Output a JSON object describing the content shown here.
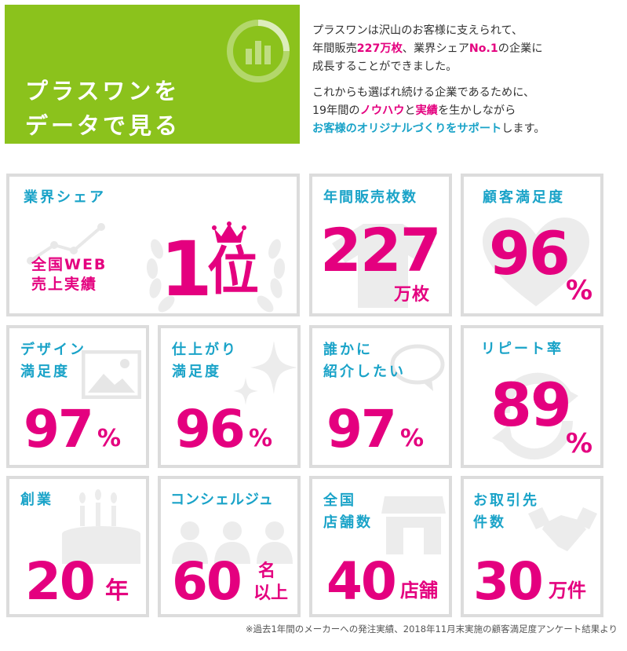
{
  "banner": {
    "title_line1": "プラスワンを",
    "title_line2": "データで見る",
    "bg_color": "#8bc21c",
    "icon": "chart-ring-icon"
  },
  "intro": {
    "p1_a": "プラスワンは沢山のお客様に支えられて、",
    "p1_b": "年間販売",
    "p1_c": "227万枚",
    "p1_d": "、業界シェア",
    "p1_e": "No.1",
    "p1_f": "の企業に",
    "p1_g": "成長することができました。",
    "p2_a": "これからも選ばれ続ける企業であるために、",
    "p2_b": "19年間の",
    "p2_c": "ノウハウ",
    "p2_d": "と",
    "p2_e": "実績",
    "p2_f": "を生かしながら",
    "p2_g": "お客様のオリジナルづくりをサポート",
    "p2_h": "します。"
  },
  "colors": {
    "pink": "#e4007f",
    "blue": "#1aa3c8",
    "green": "#8bc21c",
    "border": "#dcdcdc"
  },
  "stats": {
    "share": {
      "label": "業界シェア",
      "sub1": "全国WEB",
      "sub2": "売上実績",
      "value": "1",
      "unit": "位",
      "icon": "crown-icon"
    },
    "annual": {
      "label": "年間販売枚数",
      "value": "227",
      "unit": "万枚",
      "icon": "tshirt-icon"
    },
    "satisfaction": {
      "label": "顧客満足度",
      "value": "96",
      "unit": "%",
      "icon": "heart-icon"
    },
    "design": {
      "label1": "デザイン",
      "label2": "満足度",
      "value": "97",
      "unit": "%",
      "icon": "picture-icon"
    },
    "finish": {
      "label1": "仕上がり",
      "label2": "満足度",
      "value": "96",
      "unit": "%",
      "icon": "sparkle-icon"
    },
    "recommend": {
      "label1": "誰かに",
      "label2": "紹介したい",
      "value": "97",
      "unit": "%",
      "icon": "speech-bubble-icon"
    },
    "repeat": {
      "label": "リピート率",
      "value": "89",
      "unit": "%",
      "icon": "cycle-arrows-icon"
    },
    "founded": {
      "label": "創業",
      "value": "20",
      "unit": "年",
      "icon": "cake-icon"
    },
    "concierge": {
      "label": "コンシェルジュ",
      "value": "60",
      "unit1": "名",
      "unit2": "以上",
      "icon": "people-icon"
    },
    "stores": {
      "label1": "全国",
      "label2": "店舗数",
      "value": "40",
      "unit": "店舗",
      "icon": "store-icon"
    },
    "clients": {
      "label1": "お取引先",
      "label2": "件数",
      "value": "30",
      "unit": "万件",
      "icon": "handshake-icon"
    }
  },
  "footnote": "※過去1年間のメーカーへの発注実績、2018年11月末実施の顧客満足度アンケート結果より"
}
